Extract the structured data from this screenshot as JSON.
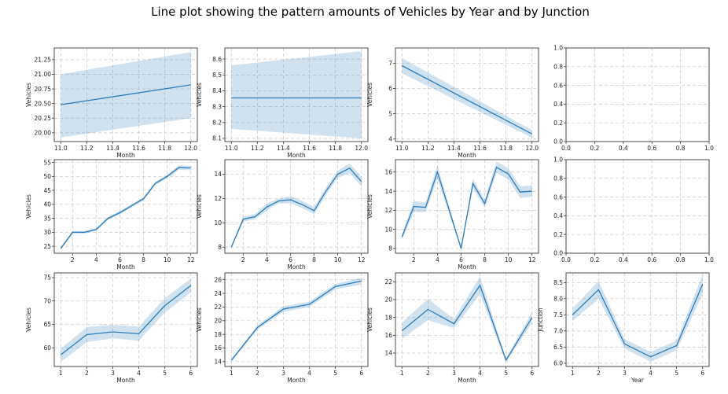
{
  "figure": {
    "title": "Line plot showing the pattern amounts of Vehicles by Year and by Junction"
  },
  "chart_data": [
    {
      "type": "line",
      "row": 0,
      "col": 0,
      "xlabel": "Month",
      "ylabel": "Vehicles",
      "xlim": [
        10.95,
        12.05
      ],
      "ylim": [
        19.85,
        21.45
      ],
      "xticks": [
        11.0,
        11.2,
        11.4,
        11.6,
        11.8,
        12.0
      ],
      "xtick_labels": [
        "11.0",
        "11.2",
        "11.4",
        "11.6",
        "11.8",
        "12.0"
      ],
      "yticks": [
        20.0,
        20.25,
        20.5,
        20.75,
        21.0,
        21.25
      ],
      "ytick_labels": [
        "20.00",
        "20.25",
        "20.50",
        "20.75",
        "21.00",
        "21.25"
      ],
      "grid": true,
      "series": [
        {
          "x": [
            11,
            12
          ],
          "y": [
            20.48,
            20.82
          ],
          "lower": [
            19.92,
            20.25
          ],
          "upper": [
            21.0,
            21.38
          ]
        }
      ]
    },
    {
      "type": "line",
      "row": 0,
      "col": 1,
      "xlabel": "Month",
      "ylabel": "Vehicles",
      "xlim": [
        10.95,
        12.05
      ],
      "ylim": [
        8.08,
        8.67
      ],
      "xticks": [
        11.0,
        11.2,
        11.4,
        11.6,
        11.8,
        12.0
      ],
      "xtick_labels": [
        "11.0",
        "11.2",
        "11.4",
        "11.6",
        "11.8",
        "12.0"
      ],
      "yticks": [
        8.1,
        8.2,
        8.3,
        8.4,
        8.5,
        8.6
      ],
      "ytick_labels": [
        "8.1",
        "8.2",
        "8.3",
        "8.4",
        "8.5",
        "8.6"
      ],
      "grid": true,
      "series": [
        {
          "x": [
            11,
            12
          ],
          "y": [
            8.355,
            8.355
          ],
          "lower": [
            8.16,
            8.1
          ],
          "upper": [
            8.56,
            8.65
          ]
        }
      ]
    },
    {
      "type": "line",
      "row": 0,
      "col": 2,
      "xlabel": "Month",
      "ylabel": "Vehicles",
      "xlim": [
        10.95,
        12.05
      ],
      "ylim": [
        3.9,
        7.6
      ],
      "xticks": [
        11.0,
        11.2,
        11.4,
        11.6,
        11.8,
        12.0
      ],
      "xtick_labels": [
        "11.0",
        "11.2",
        "11.4",
        "11.6",
        "11.8",
        "12.0"
      ],
      "yticks": [
        4,
        5,
        6,
        7
      ],
      "ytick_labels": [
        "4",
        "5",
        "6",
        "7"
      ],
      "grid": true,
      "series": [
        {
          "x": [
            11,
            12
          ],
          "y": [
            6.9,
            4.2
          ],
          "lower": [
            6.6,
            4.05
          ],
          "upper": [
            7.2,
            4.35
          ]
        }
      ]
    },
    {
      "type": "line",
      "row": 0,
      "col": 3,
      "xlabel": "",
      "ylabel": "",
      "xlim": [
        0,
        1
      ],
      "ylim": [
        0,
        1
      ],
      "xticks": [
        0,
        0.2,
        0.4,
        0.6,
        0.8,
        1.0
      ],
      "xtick_labels": [
        "0.0",
        "0.2",
        "0.4",
        "0.6",
        "0.8",
        "1.0"
      ],
      "yticks": [
        0,
        0.2,
        0.4,
        0.6,
        0.8,
        1.0
      ],
      "ytick_labels": [
        "0.0",
        "0.2",
        "0.4",
        "0.6",
        "0.8",
        "1.0"
      ],
      "grid": true,
      "series": []
    },
    {
      "type": "line",
      "row": 1,
      "col": 0,
      "xlabel": "Month",
      "ylabel": "Vehicles",
      "xlim": [
        0.45,
        12.55
      ],
      "ylim": [
        22.5,
        56
      ],
      "xticks": [
        2,
        4,
        6,
        8,
        10,
        12
      ],
      "xtick_labels": [
        "2",
        "4",
        "6",
        "8",
        "10",
        "12"
      ],
      "yticks": [
        25,
        30,
        35,
        40,
        45,
        50,
        55
      ],
      "ytick_labels": [
        "25",
        "30",
        "35",
        "40",
        "45",
        "50",
        "55"
      ],
      "grid": true,
      "series": [
        {
          "x": [
            1,
            2,
            3,
            4,
            5,
            6,
            7,
            8,
            9,
            10,
            11,
            12
          ],
          "y": [
            24.2,
            30,
            30,
            31,
            35,
            37,
            39.5,
            42,
            47.5,
            50,
            53.2,
            53
          ],
          "lower": [
            23.7,
            29.5,
            29.5,
            30.5,
            34.5,
            36.4,
            38.9,
            41.4,
            46.9,
            49.3,
            52.4,
            52.2
          ],
          "upper": [
            24.7,
            30.5,
            30.5,
            31.5,
            35.5,
            37.6,
            40.1,
            42.6,
            48.1,
            50.7,
            54,
            53.8
          ]
        }
      ]
    },
    {
      "type": "line",
      "row": 1,
      "col": 1,
      "xlabel": "Month",
      "ylabel": "Vehicles",
      "xlim": [
        0.45,
        12.55
      ],
      "ylim": [
        7.5,
        15.2
      ],
      "xticks": [
        2,
        4,
        6,
        8,
        10,
        12
      ],
      "xtick_labels": [
        "2",
        "4",
        "6",
        "8",
        "10",
        "12"
      ],
      "yticks": [
        8,
        10,
        12,
        14
      ],
      "ytick_labels": [
        "8",
        "10",
        "12",
        "14"
      ],
      "grid": true,
      "series": [
        {
          "x": [
            1,
            2,
            3,
            4,
            5,
            6,
            7,
            8,
            9,
            10,
            11,
            12
          ],
          "y": [
            8,
            10.3,
            10.5,
            11.3,
            11.8,
            11.9,
            11.5,
            11.0,
            12.6,
            14.0,
            14.5,
            13.4
          ],
          "lower": [
            7.9,
            10.1,
            10.3,
            11.0,
            11.6,
            11.6,
            11.2,
            10.7,
            12.3,
            13.7,
            14.1,
            13.0
          ],
          "upper": [
            8.1,
            10.5,
            10.7,
            11.6,
            12.0,
            12.2,
            11.8,
            11.3,
            12.9,
            14.3,
            14.9,
            13.8
          ]
        }
      ]
    },
    {
      "type": "line",
      "row": 1,
      "col": 2,
      "xlabel": "Month",
      "ylabel": "Vehicles",
      "xlim": [
        0.45,
        12.55
      ],
      "ylim": [
        7.5,
        17.3
      ],
      "xticks": [
        2,
        4,
        6,
        8,
        10,
        12
      ],
      "xtick_labels": [
        "2",
        "4",
        "6",
        "8",
        "10",
        "12"
      ],
      "yticks": [
        8,
        10,
        12,
        14,
        16
      ],
      "ytick_labels": [
        "8",
        "10",
        "12",
        "14",
        "16"
      ],
      "grid": true,
      "series": [
        {
          "x": [
            1,
            2,
            3,
            4,
            5,
            6,
            7,
            8,
            9,
            10,
            11,
            12
          ],
          "y": [
            9.2,
            12.4,
            12.3,
            16,
            12,
            8,
            14.8,
            12.7,
            16.5,
            15.8,
            13.9,
            14
          ],
          "lower": [
            8.9,
            11.8,
            11.8,
            15.3,
            11.6,
            7.9,
            14.3,
            12.3,
            15.9,
            15.2,
            13.3,
            13.4
          ],
          "upper": [
            9.5,
            13.0,
            12.8,
            16.7,
            12.4,
            8.1,
            15.3,
            13.1,
            17.1,
            16.4,
            14.5,
            14.6
          ]
        }
      ]
    },
    {
      "type": "line",
      "row": 1,
      "col": 3,
      "xlabel": "",
      "ylabel": "",
      "xlim": [
        0,
        1
      ],
      "ylim": [
        0,
        1
      ],
      "xticks": [
        0,
        0.2,
        0.4,
        0.6,
        0.8,
        1.0
      ],
      "xtick_labels": [
        "0.0",
        "0.2",
        "0.4",
        "0.6",
        "0.8",
        "1.0"
      ],
      "yticks": [
        0,
        0.2,
        0.4,
        0.6,
        0.8,
        1.0
      ],
      "ytick_labels": [
        "0.0",
        "0.2",
        "0.4",
        "0.6",
        "0.8",
        "1.0"
      ],
      "grid": true,
      "series": []
    },
    {
      "type": "line",
      "row": 2,
      "col": 0,
      "xlabel": "Month",
      "ylabel": "Vehicles",
      "xlim": [
        0.75,
        6.25
      ],
      "ylim": [
        56,
        76
      ],
      "xticks": [
        1,
        2,
        3,
        4,
        5,
        6
      ],
      "xtick_labels": [
        "1",
        "2",
        "3",
        "4",
        "5",
        "6"
      ],
      "yticks": [
        60,
        65,
        70,
        75
      ],
      "ytick_labels": [
        "60",
        "65",
        "70",
        "75"
      ],
      "grid": true,
      "series": [
        {
          "x": [
            1,
            2,
            3,
            4,
            5,
            6
          ],
          "y": [
            58.5,
            62.8,
            63.4,
            63.0,
            69,
            73.3
          ],
          "lower": [
            57.0,
            61.2,
            62.0,
            61.5,
            67.5,
            71.8
          ],
          "upper": [
            59.8,
            64.4,
            64.9,
            64.5,
            70.6,
            74.8
          ]
        }
      ]
    },
    {
      "type": "line",
      "row": 2,
      "col": 1,
      "xlabel": "Month",
      "ylabel": "Vehicles",
      "xlim": [
        0.75,
        6.25
      ],
      "ylim": [
        13.3,
        27
      ],
      "xticks": [
        1,
        2,
        3,
        4,
        5,
        6
      ],
      "xtick_labels": [
        "1",
        "2",
        "3",
        "4",
        "5",
        "6"
      ],
      "yticks": [
        14,
        16,
        18,
        20,
        22,
        24,
        26
      ],
      "ytick_labels": [
        "14",
        "16",
        "18",
        "20",
        "22",
        "24",
        "26"
      ],
      "grid": true,
      "series": [
        {
          "x": [
            1,
            2,
            3,
            4,
            5,
            6
          ],
          "y": [
            14.2,
            19,
            21.7,
            22.4,
            25,
            25.8
          ],
          "lower": [
            14.0,
            18.7,
            21.3,
            22.0,
            24.6,
            25.3
          ],
          "upper": [
            14.4,
            19.3,
            22.1,
            22.8,
            25.4,
            26.3
          ]
        }
      ]
    },
    {
      "type": "line",
      "row": 2,
      "col": 2,
      "xlabel": "Month",
      "ylabel": "Vehicles",
      "xlim": [
        0.75,
        6.25
      ],
      "ylim": [
        12.5,
        23
      ],
      "xticks": [
        1,
        2,
        3,
        4,
        5,
        6
      ],
      "xtick_labels": [
        "1",
        "2",
        "3",
        "4",
        "5",
        "6"
      ],
      "yticks": [
        14,
        16,
        18,
        20,
        22
      ],
      "ytick_labels": [
        "14",
        "16",
        "18",
        "20",
        "22"
      ],
      "grid": true,
      "series": [
        {
          "x": [
            1,
            2,
            3,
            4,
            5,
            6
          ],
          "y": [
            16.5,
            18.9,
            17.3,
            21.6,
            13.2,
            18
          ],
          "lower": [
            15.6,
            17.7,
            16.8,
            20.6,
            13.0,
            17.4
          ],
          "upper": [
            17.4,
            20.1,
            17.8,
            22.6,
            13.4,
            18.6
          ]
        }
      ]
    },
    {
      "type": "line",
      "row": 2,
      "col": 3,
      "xlabel": "Year",
      "ylabel": "Junction",
      "xlim": [
        0.75,
        6.25
      ],
      "ylim": [
        5.9,
        8.8
      ],
      "xticks": [
        1,
        2,
        3,
        4,
        5,
        6
      ],
      "xtick_labels": [
        "1",
        "2",
        "3",
        "4",
        "5",
        "6"
      ],
      "yticks": [
        6.0,
        6.5,
        7.0,
        7.5,
        8.0,
        8.5
      ],
      "ytick_labels": [
        "6.0",
        "6.5",
        "7.0",
        "7.5",
        "8.0",
        "8.5"
      ],
      "grid": true,
      "series": [
        {
          "x": [
            1,
            2,
            3,
            4,
            5,
            6
          ],
          "y": [
            7.5,
            8.28,
            6.6,
            6.2,
            6.55,
            8.45
          ],
          "lower": [
            7.3,
            8.0,
            6.45,
            6.05,
            6.4,
            8.15
          ],
          "upper": [
            7.7,
            8.55,
            6.75,
            6.35,
            6.7,
            8.75
          ]
        }
      ]
    }
  ]
}
